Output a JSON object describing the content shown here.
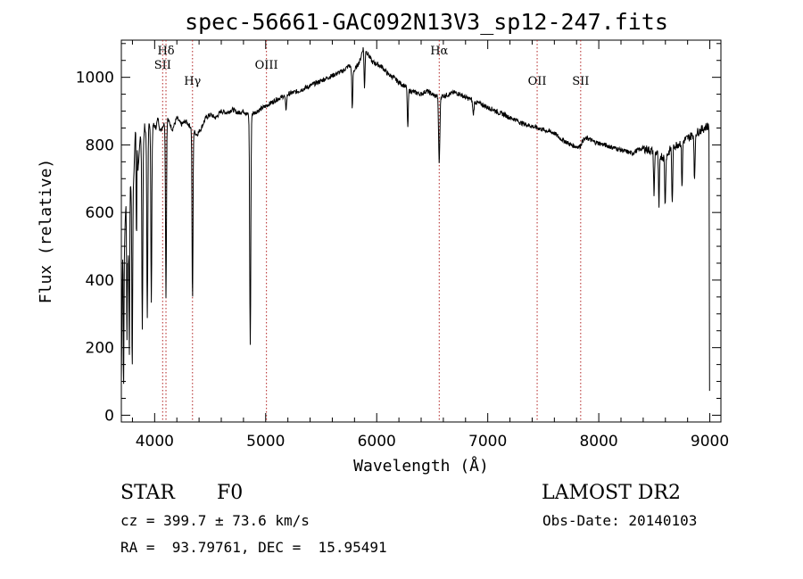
{
  "chart_data": {
    "type": "line",
    "title": "spec-56661-GAC092N13V3_sp12-247.fits",
    "xlabel": "Wavelength (Å)",
    "ylabel": "Flux (relative)",
    "xlim": [
      3700,
      9100
    ],
    "ylim": [
      -20,
      1110
    ],
    "xticks": [
      4000,
      5000,
      6000,
      7000,
      8000,
      9000
    ],
    "xtick_labels": [
      "4000",
      "5000",
      "6000",
      "7000",
      "8000",
      "9000"
    ],
    "yticks": [
      0,
      200,
      400,
      600,
      800,
      1000
    ],
    "ytick_labels": [
      "0",
      "200",
      "400",
      "600",
      "800",
      "1000"
    ],
    "grid": false,
    "line_color": "#000000",
    "marker_color": "#b22222",
    "spectral_lines": [
      {
        "label": "Hδ",
        "wavelength": 4102,
        "row": 0
      },
      {
        "label": "SII",
        "wavelength": 4072,
        "row": 1
      },
      {
        "label": "Hγ",
        "wavelength": 4341,
        "row": 2
      },
      {
        "label": "OIII",
        "wavelength": 5007,
        "row": 1
      },
      {
        "label": "Hα",
        "wavelength": 6563,
        "row": 0
      },
      {
        "label": "OII",
        "wavelength": 7445,
        "row": 2
      },
      {
        "label": "SII",
        "wavelength": 7837,
        "row": 2
      }
    ],
    "continuum": [
      [
        3700,
        100
      ],
      [
        3715,
        600
      ],
      [
        3730,
        520
      ],
      [
        3745,
        680
      ],
      [
        3760,
        460
      ],
      [
        3780,
        700
      ],
      [
        3800,
        600
      ],
      [
        3820,
        780
      ],
      [
        3835,
        960
      ],
      [
        3850,
        720
      ],
      [
        3870,
        830
      ],
      [
        3890,
        760
      ],
      [
        3910,
        860
      ],
      [
        3930,
        800
      ],
      [
        3950,
        870
      ],
      [
        3970,
        820
      ],
      [
        3990,
        860
      ],
      [
        4010,
        850
      ],
      [
        4030,
        880
      ],
      [
        4050,
        840
      ],
      [
        4080,
        860
      ],
      [
        4120,
        875
      ],
      [
        4160,
        845
      ],
      [
        4200,
        880
      ],
      [
        4240,
        860
      ],
      [
        4280,
        870
      ],
      [
        4320,
        855
      ],
      [
        4380,
        830
      ],
      [
        4420,
        850
      ],
      [
        4460,
        880
      ],
      [
        4500,
        890
      ],
      [
        4550,
        880
      ],
      [
        4600,
        900
      ],
      [
        4650,
        895
      ],
      [
        4700,
        905
      ],
      [
        4750,
        895
      ],
      [
        4800,
        900
      ],
      [
        4840,
        890
      ],
      [
        4900,
        895
      ],
      [
        4950,
        905
      ],
      [
        5000,
        915
      ],
      [
        5100,
        935
      ],
      [
        5200,
        950
      ],
      [
        5300,
        960
      ],
      [
        5400,
        975
      ],
      [
        5500,
        990
      ],
      [
        5600,
        1005
      ],
      [
        5700,
        1020
      ],
      [
        5750,
        1035
      ],
      [
        5800,
        1020
      ],
      [
        5850,
        1050
      ],
      [
        5880,
        1090
      ],
      [
        5920,
        1070
      ],
      [
        5960,
        1045
      ],
      [
        6000,
        1040
      ],
      [
        6050,
        1030
      ],
      [
        6100,
        1010
      ],
      [
        6150,
        1000
      ],
      [
        6200,
        985
      ],
      [
        6250,
        975
      ],
      [
        6300,
        960
      ],
      [
        6350,
        955
      ],
      [
        6400,
        950
      ],
      [
        6450,
        960
      ],
      [
        6500,
        950
      ],
      [
        6520,
        945
      ],
      [
        6600,
        945
      ],
      [
        6650,
        950
      ],
      [
        6700,
        955
      ],
      [
        6750,
        950
      ],
      [
        6800,
        940
      ],
      [
        6850,
        935
      ],
      [
        6900,
        925
      ],
      [
        6950,
        920
      ],
      [
        7000,
        910
      ],
      [
        7050,
        905
      ],
      [
        7100,
        895
      ],
      [
        7150,
        890
      ],
      [
        7200,
        880
      ],
      [
        7250,
        875
      ],
      [
        7300,
        865
      ],
      [
        7350,
        860
      ],
      [
        7400,
        855
      ],
      [
        7450,
        850
      ],
      [
        7500,
        845
      ],
      [
        7550,
        840
      ],
      [
        7600,
        835
      ],
      [
        7650,
        820
      ],
      [
        7700,
        810
      ],
      [
        7750,
        800
      ],
      [
        7800,
        795
      ],
      [
        7830,
        795
      ],
      [
        7860,
        815
      ],
      [
        7900,
        820
      ],
      [
        7950,
        810
      ],
      [
        8000,
        805
      ],
      [
        8050,
        800
      ],
      [
        8100,
        795
      ],
      [
        8150,
        790
      ],
      [
        8200,
        785
      ],
      [
        8250,
        780
      ],
      [
        8300,
        775
      ],
      [
        8350,
        785
      ],
      [
        8400,
        790
      ],
      [
        8450,
        785
      ],
      [
        8500,
        780
      ],
      [
        8550,
        770
      ],
      [
        8600,
        760
      ],
      [
        8650,
        790
      ],
      [
        8700,
        800
      ],
      [
        8750,
        810
      ],
      [
        8800,
        820
      ],
      [
        8850,
        830
      ],
      [
        8900,
        840
      ],
      [
        8950,
        850
      ],
      [
        9000,
        860
      ]
    ],
    "absorption_features": [
      {
        "center": 3720,
        "depth": 500,
        "width": 5
      },
      {
        "center": 3750,
        "depth": 380,
        "width": 5
      },
      {
        "center": 3772,
        "depth": 420,
        "width": 5
      },
      {
        "center": 3798,
        "depth": 480,
        "width": 5
      },
      {
        "center": 3836,
        "depth": 430,
        "width": 5
      },
      {
        "center": 3889,
        "depth": 510,
        "width": 6
      },
      {
        "center": 3934,
        "depth": 530,
        "width": 6
      },
      {
        "center": 3970,
        "depth": 480,
        "width": 6
      },
      {
        "center": 4102,
        "depth": 520,
        "width": 6
      },
      {
        "center": 4341,
        "depth": 510,
        "width": 6
      },
      {
        "center": 4861,
        "depth": 680,
        "width": 7
      },
      {
        "center": 5183,
        "depth": 40,
        "width": 8
      },
      {
        "center": 5780,
        "depth": 120,
        "width": 6
      },
      {
        "center": 5890,
        "depth": 120,
        "width": 6
      },
      {
        "center": 6280,
        "depth": 120,
        "width": 6
      },
      {
        "center": 6563,
        "depth": 200,
        "width": 8
      },
      {
        "center": 6870,
        "depth": 40,
        "width": 8
      },
      {
        "center": 8498,
        "depth": 130,
        "width": 6
      },
      {
        "center": 8542,
        "depth": 160,
        "width": 6
      },
      {
        "center": 8598,
        "depth": 140,
        "width": 6
      },
      {
        "center": 8662,
        "depth": 170,
        "width": 6
      },
      {
        "center": 8750,
        "depth": 130,
        "width": 6
      },
      {
        "center": 8863,
        "depth": 140,
        "width": 6
      },
      {
        "center": 8998,
        "depth": 800,
        "width": 3
      }
    ]
  },
  "info": {
    "class": "STAR",
    "subclass": "F0",
    "survey": "LAMOST DR2",
    "cz": "cz = 399.7 ± 73.6 km/s",
    "obs_date": "Obs-Date: 20140103",
    "coords": "RA =  93.79761, DEC =  15.95491"
  }
}
